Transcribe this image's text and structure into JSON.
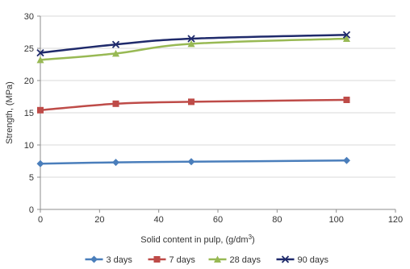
{
  "chart_data": {
    "type": "line",
    "xlabel": "Solid content in pulp, (g/dm",
    "xlabel_sup": "3",
    "xlabel_end": ")",
    "ylabel": "Strength, (MPa)",
    "xlim": [
      0,
      120
    ],
    "ylim": [
      0,
      30
    ],
    "xticks": [
      0,
      20,
      40,
      60,
      80,
      100,
      120
    ],
    "yticks": [
      0,
      5,
      10,
      15,
      20,
      25,
      30
    ],
    "xtick_labels": [
      "0",
      "20",
      "40",
      "60",
      "80",
      "100",
      "120"
    ],
    "ytick_labels": [
      "0",
      "5",
      "10",
      "15",
      "20",
      "25",
      "30"
    ],
    "grid": "horizontal",
    "legend_position": "bottom",
    "x": [
      0,
      25.5,
      51,
      103.5
    ],
    "series": [
      {
        "name": "3 days",
        "values": [
          7.1,
          7.3,
          7.4,
          7.6
        ],
        "color": "#4a7ebb",
        "marker": "diamond"
      },
      {
        "name": "7 days",
        "values": [
          15.4,
          16.4,
          16.7,
          17.0
        ],
        "color": "#be4b48",
        "marker": "square"
      },
      {
        "name": "28 days",
        "values": [
          23.2,
          24.2,
          25.7,
          26.5
        ],
        "color": "#98b954",
        "marker": "triangle"
      },
      {
        "name": "90 days",
        "values": [
          24.3,
          25.6,
          26.5,
          27.1
        ],
        "color": "#1f2a6b",
        "marker": "x"
      }
    ]
  }
}
